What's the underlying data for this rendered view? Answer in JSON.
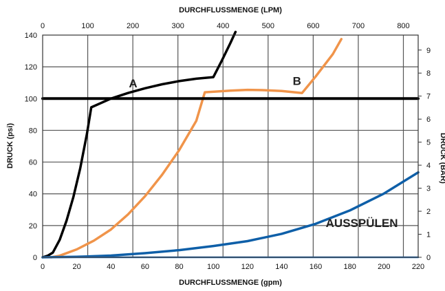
{
  "chart_data": {
    "type": "line",
    "title": "",
    "xlabel": "DURCHFLUSSMENGE (gpm)",
    "x2label": "DURCHFLUSSMENGE (LPM)",
    "ylabel": "DRUCK (psi)",
    "y2label": "DRUCK (BAR)",
    "xlim": [
      0,
      220
    ],
    "ylim": [
      0,
      140
    ],
    "x2lim": [
      0,
      832.8
    ],
    "y2lim": [
      0,
      9.65
    ],
    "x_ticks": [
      0,
      20,
      40,
      60,
      80,
      100,
      120,
      140,
      160,
      180,
      200,
      220
    ],
    "y_ticks": [
      0,
      20,
      40,
      60,
      80,
      100,
      120,
      140
    ],
    "x2_ticks": [
      0,
      100,
      200,
      300,
      400,
      500,
      600,
      700,
      800
    ],
    "y2_ticks": [
      0,
      1,
      2,
      3,
      4,
      5,
      6,
      7,
      8,
      9
    ],
    "grid": true,
    "series": [
      {
        "color": "#000000",
        "x": [
          0,
          3,
          6,
          10,
          14,
          18,
          22,
          26,
          28.5,
          40,
          50,
          60,
          70,
          80,
          90,
          100,
          105,
          110,
          113
        ],
        "values": [
          0,
          1,
          3,
          11,
          23,
          38,
          56,
          78,
          94.5,
          100,
          103.5,
          106.5,
          109,
          111,
          112.5,
          113.5,
          124,
          135,
          142
        ]
      },
      {
        "color": "#F0944A",
        "x": [
          5,
          10,
          20,
          30,
          40,
          50,
          60,
          70,
          80,
          90,
          95,
          110,
          120,
          130,
          140,
          152,
          160,
          170,
          175
        ],
        "values": [
          0,
          1,
          5,
          10.5,
          17.5,
          27,
          38.5,
          52,
          67.5,
          86,
          104,
          105,
          105.5,
          105.3,
          104.8,
          103.5,
          114,
          128,
          137.5
        ]
      },
      {
        "color": "#0E5FA8",
        "x": [
          0,
          20,
          40,
          60,
          80,
          100,
          120,
          140,
          160,
          180,
          200,
          220
        ],
        "values": [
          0,
          0.3,
          1.1,
          2.6,
          4.5,
          7.1,
          10.2,
          14.8,
          21.1,
          29.5,
          40.2,
          53.5
        ]
      },
      {
        "color": "#000000",
        "x": [
          0,
          220
        ],
        "values": [
          100,
          100
        ]
      },
      {
        "color": "#2F78C4",
        "x": [
          0,
          220
        ],
        "values": [
          0,
          0
        ]
      }
    ],
    "annotations": [
      {
        "text": "A",
        "x": 53,
        "y": 107
      },
      {
        "text": "B",
        "x": 149,
        "y": 108.5
      },
      {
        "text": "AUSSPÜLEN",
        "x": 187,
        "y": 19
      }
    ]
  }
}
